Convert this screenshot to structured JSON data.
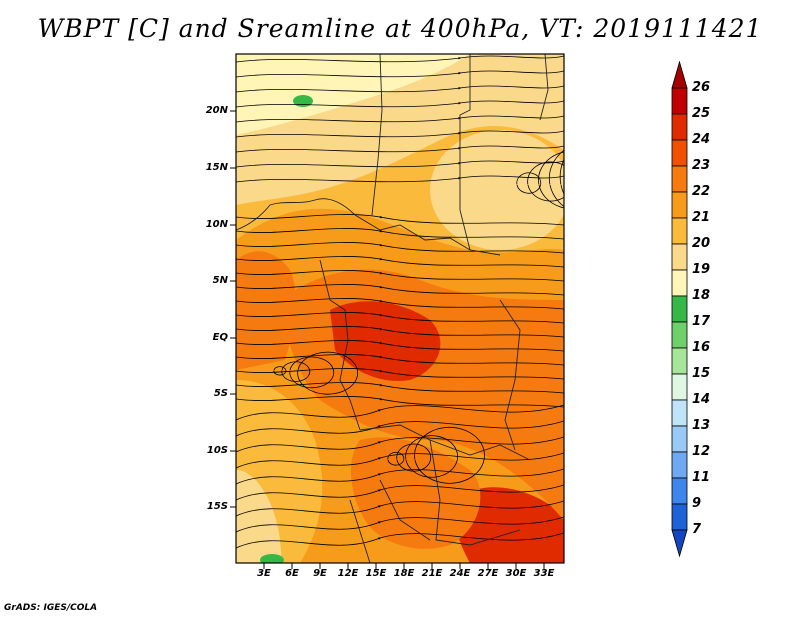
{
  "title": "WBPT [C] and Sreamline at 400hPa, VT: 2019111421",
  "credit": "GrADS: IGES/COLA",
  "map": {
    "lat_labels": [
      "20N",
      "15N",
      "10N",
      "5N",
      "EQ",
      "5S",
      "10S",
      "15S"
    ],
    "lon_labels": [
      "3E",
      "6E",
      "9E",
      "12E",
      "15E",
      "18E",
      "21E",
      "24E",
      "27E",
      "30E",
      "33E"
    ]
  },
  "colorbar": {
    "labels": [
      "26",
      "25",
      "24",
      "23",
      "22",
      "21",
      "20",
      "19",
      "18",
      "17",
      "16",
      "15",
      "14",
      "13",
      "12",
      "11",
      "9",
      "7"
    ],
    "colors": [
      "#a50000",
      "#c00000",
      "#e02a00",
      "#f05000",
      "#f57a10",
      "#f79b1a",
      "#fabb3c",
      "#fbd98b",
      "#fff5b6",
      "#37b745",
      "#6fd06a",
      "#a7e69a",
      "#def7e3",
      "#bfe3f7",
      "#99c9f5",
      "#6ea9f2",
      "#3e85ec",
      "#1e62d8",
      "#1246c0"
    ]
  }
}
